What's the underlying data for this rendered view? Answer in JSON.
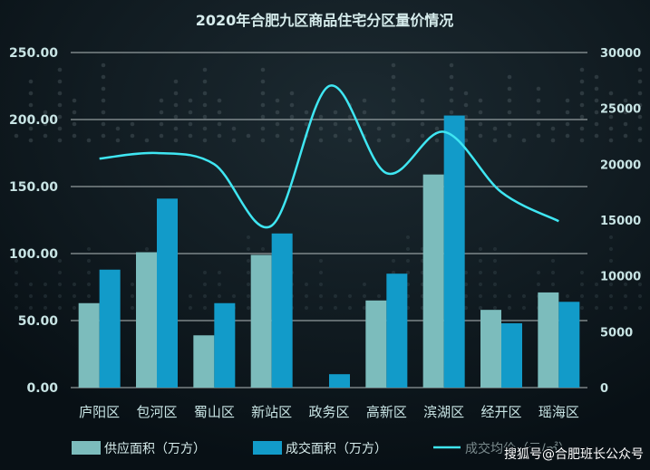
{
  "chart_data": {
    "type": "bar",
    "title": "2020年合肥九区商品住宅分区量价情况",
    "categories": [
      "庐阳区",
      "包河区",
      "蜀山区",
      "新站区",
      "政务区",
      "高新区",
      "滨湖区",
      "经开区",
      "瑶海区"
    ],
    "series": [
      {
        "name": "供应面积（万方）",
        "type": "bar",
        "axis": "left",
        "color": "#7cbcbc",
        "values": [
          63,
          101,
          39,
          99,
          0,
          65,
          159,
          58,
          71
        ]
      },
      {
        "name": "成交面积（万方）",
        "type": "bar",
        "axis": "left",
        "color": "#129bc9",
        "values": [
          88,
          141,
          63,
          115,
          10,
          85,
          203,
          48,
          64
        ]
      },
      {
        "name": "成交均价（元/㎡）",
        "type": "line",
        "axis": "right",
        "color": "#3fe6f2",
        "values": [
          20500,
          21000,
          20000,
          14500,
          27000,
          19200,
          22900,
          17500,
          14900
        ]
      }
    ],
    "left_axis": {
      "min": 0,
      "max": 250,
      "step": 50,
      "tick_labels": [
        "0.00",
        "50.00",
        "100.00",
        "150.00",
        "200.00",
        "250.00"
      ]
    },
    "right_axis": {
      "min": 0,
      "max": 30000,
      "step": 5000,
      "tick_labels": [
        "0",
        "5000",
        "10000",
        "15000",
        "20000",
        "25000",
        "30000"
      ]
    },
    "grid": true,
    "legend_position": "bottom"
  },
  "legend": {
    "supply": "供应面积（万方）",
    "deal": "成交面积（万方）",
    "price": "成交均价（元/㎡）"
  },
  "watermark": "搜狐号@合肥班长公众号",
  "colors": {
    "background": "#0b1217",
    "title": "#d6ecec",
    "axis_text": "#c8e4e4",
    "grid": "#cfd8d8"
  }
}
